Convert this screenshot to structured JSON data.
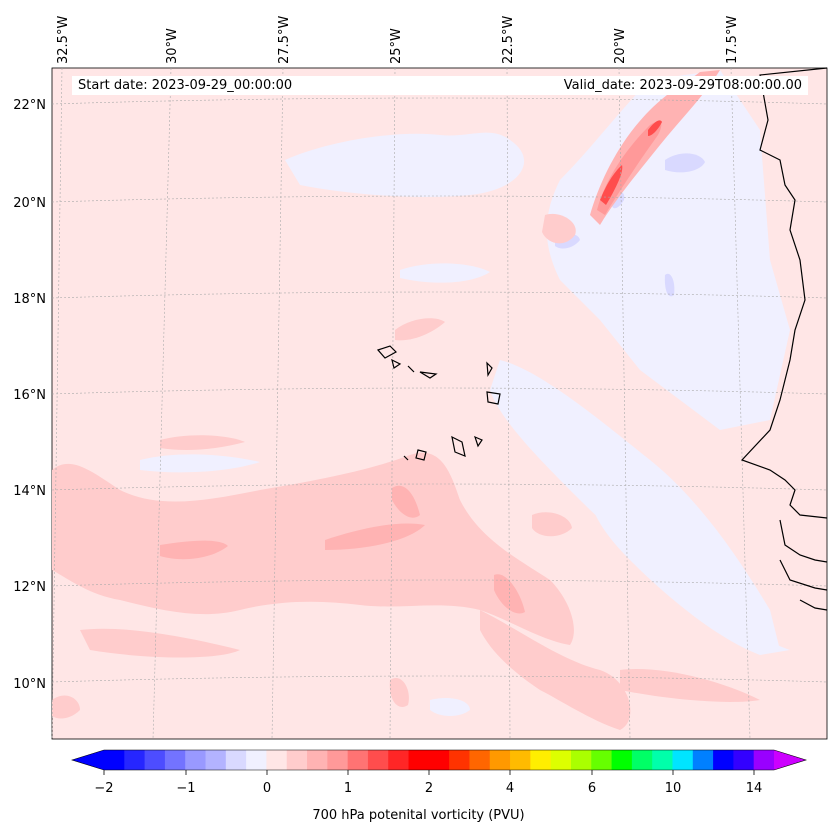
{
  "header": {
    "start_date": "Start date: 2023-09-29_00:00:00",
    "valid_date": "Valid_date: 2023-09-29T08:00:00.00"
  },
  "map": {
    "lon_ticks": [
      "32.5°W",
      "30°W",
      "27.5°W",
      "25°W",
      "22.5°W",
      "20°W",
      "17.5°W"
    ],
    "lat_ticks": [
      "22°N",
      "20°N",
      "18°N",
      "16°N",
      "14°N",
      "12°N",
      "10°N"
    ],
    "background_color": "#ffe6e6",
    "land_outline_color": "#000000"
  },
  "colorbar": {
    "label": "700 hPa potenital vorticity (PVU)",
    "tick_labels": [
      "−2",
      "−1",
      "0",
      "1",
      "2",
      "4",
      "6",
      "10",
      "14"
    ],
    "colors": [
      "#0000ff",
      "#2626ff",
      "#4d4dff",
      "#7373ff",
      "#9999ff",
      "#b3b3ff",
      "#d9d9ff",
      "#f0f0ff",
      "#ffe6e6",
      "#ffcccc",
      "#ffb3b3",
      "#ff9999",
      "#ff7373",
      "#ff4d4d",
      "#ff2626",
      "#ff0000",
      "#ff0000",
      "#ff3300",
      "#ff6600",
      "#ff9900",
      "#ffbb00",
      "#ffee00",
      "#ddff00",
      "#aaff00",
      "#66ff00",
      "#00ff00",
      "#00ff66",
      "#00ffaa",
      "#00e5ff",
      "#0080ff",
      "#0000ff",
      "#3300ff",
      "#9900ff"
    ],
    "under_color": "#0000ff",
    "over_color": "#cc00ff"
  }
}
